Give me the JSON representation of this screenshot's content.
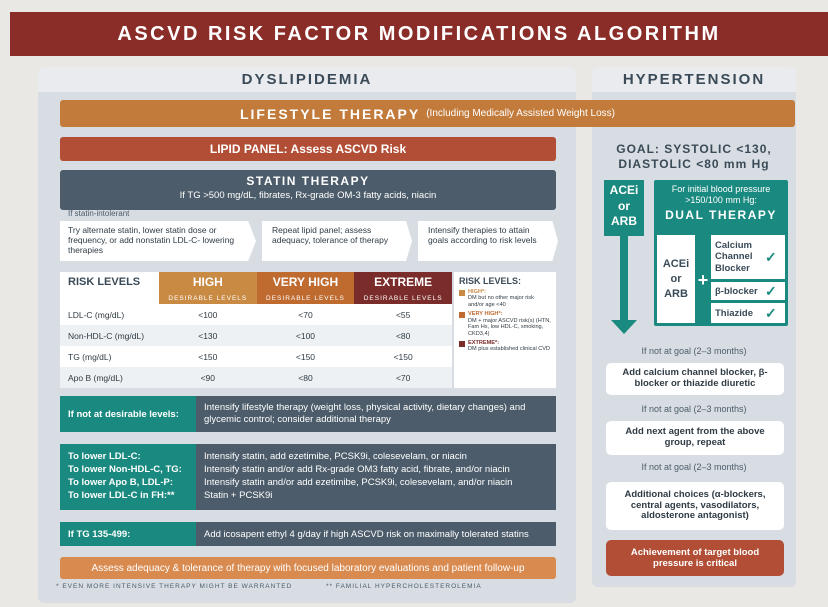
{
  "title": "ASCVD RISK FACTOR MODIFICATIONS ALGORITHM",
  "dyslipidemia": {
    "heading": "DYSLIPIDEMIA",
    "lifestyle_main": "LIFESTYLE THERAPY",
    "lifestyle_sub": "(Including Medically Assisted Weight Loss)",
    "lipid_panel": "LIPID PANEL: Assess ASCVD Risk",
    "statin_title": "STATIN THERAPY",
    "statin_sub": "If TG >500 mg/dL, fibrates, Rx-grade OM-3 fatty acids, niacin",
    "statin_intolerant": "If statin-intolerant",
    "step1": "Try alternate statin, lower statin dose or frequency, or add nonstatin LDL-C- lowering therapies",
    "step2": "Repeat lipid panel; assess adequacy, tolerance of therapy",
    "step3": "Intensify therapies to attain goals according to risk levels",
    "table": {
      "corner": "RISK LEVELS",
      "headers": [
        "HIGH",
        "VERY HIGH",
        "EXTREME"
      ],
      "sub_header": "DESIRABLE LEVELS",
      "rows": [
        {
          "label": "LDL-C (mg/dL)",
          "values": [
            "<100",
            "<70",
            "<55"
          ]
        },
        {
          "label": "Non-HDL-C (mg/dL)",
          "values": [
            "<130",
            "<100",
            "<80"
          ]
        },
        {
          "label": "TG (mg/dL)",
          "values": [
            "<150",
            "<150",
            "<150"
          ]
        },
        {
          "label": "Apo B (mg/dL)",
          "values": [
            "<90",
            "<80",
            "<70"
          ]
        }
      ]
    },
    "legend": {
      "title": "RISK LEVELS:",
      "high_label": "HIGH*:",
      "high_text": "DM but no other major risk and/or age <40",
      "very_high_label": "VERY HIGH*:",
      "very_high_text": "DM + major ASCVD risk(s) (HTN, Fam Hx, low HDL-C, smoking, CKD3,4)",
      "extreme_label": "EXTREME*:",
      "extreme_text": "DM plus established clinical CVD"
    },
    "not_desirable_label": "If not at desirable levels:",
    "not_desirable_text": "Intensify lifestyle therapy (weight loss, physical activity, dietary changes) and glycemic control; consider additional therapy",
    "lower_labels": [
      "To lower LDL-C:",
      "To lower Non-HDL-C, TG:",
      "To lower Apo B, LDL-P:",
      "To lower LDL-C in FH:**"
    ],
    "lower_texts": [
      "Intensify statin, add ezetimibe, PCSK9i, colesevelam, or niacin",
      "Intensify statin and/or add Rx-grade OM3 fatty acid, fibrate, and/or niacin",
      "Intensify statin and/or add ezetimibe, PCSK9i, colesevelam, and/or niacin",
      "Statin + PCSK9i"
    ],
    "tg_label": "If TG 135-499:",
    "tg_text": "Add icosapent ethyl 4 g/day if high ASCVD risk on maximally tolerated statins",
    "assess": "Assess adequacy & tolerance of therapy with focused laboratory evaluations and patient follow-up",
    "footnote1": "*  EVEN MORE INTENSIVE THERAPY MIGHT BE WARRANTED",
    "footnote2": "**  FAMILIAL HYPERCHOLESTEROLEMIA"
  },
  "hypertension": {
    "heading": "HYPERTENSION",
    "goal_line1": "GOAL: SYSTOLIC <130,",
    "goal_line2": "DIASTOLIC <80 mm Hg",
    "acei_top": "ACEi",
    "or_top": "or",
    "arb_top": "ARB",
    "initial_bp": "For initial blood pressure >150/100 mm Hg:",
    "dual_therapy": "DUAL THERAPY",
    "acei_inner": "ACEi",
    "or_inner": "or",
    "arb_inner": "ARB",
    "plus": "+",
    "options": [
      "Calcium Channel Blocker",
      "β-blocker",
      "Thiazide"
    ],
    "check": "✓",
    "not_goal": "If not at goal (2–3 months)",
    "add_ccb": "Add calcium channel blocker, β-blocker or thiazide diuretic",
    "next_agent": "Add next agent from the above group, repeat",
    "additional": "Additional choices (α-blockers, central agents, vasodilators, aldosterone antagonist)",
    "achievement": "Achievement of target blood pressure is critical"
  },
  "colors": {
    "title_bg": "#8a2c28",
    "orange": "#c27b3b",
    "rust": "#b24e36",
    "slate": "#4c5c6a",
    "teal": "#1a8a80",
    "very_high": "#bf6a2f",
    "extreme": "#7a2c2a"
  }
}
